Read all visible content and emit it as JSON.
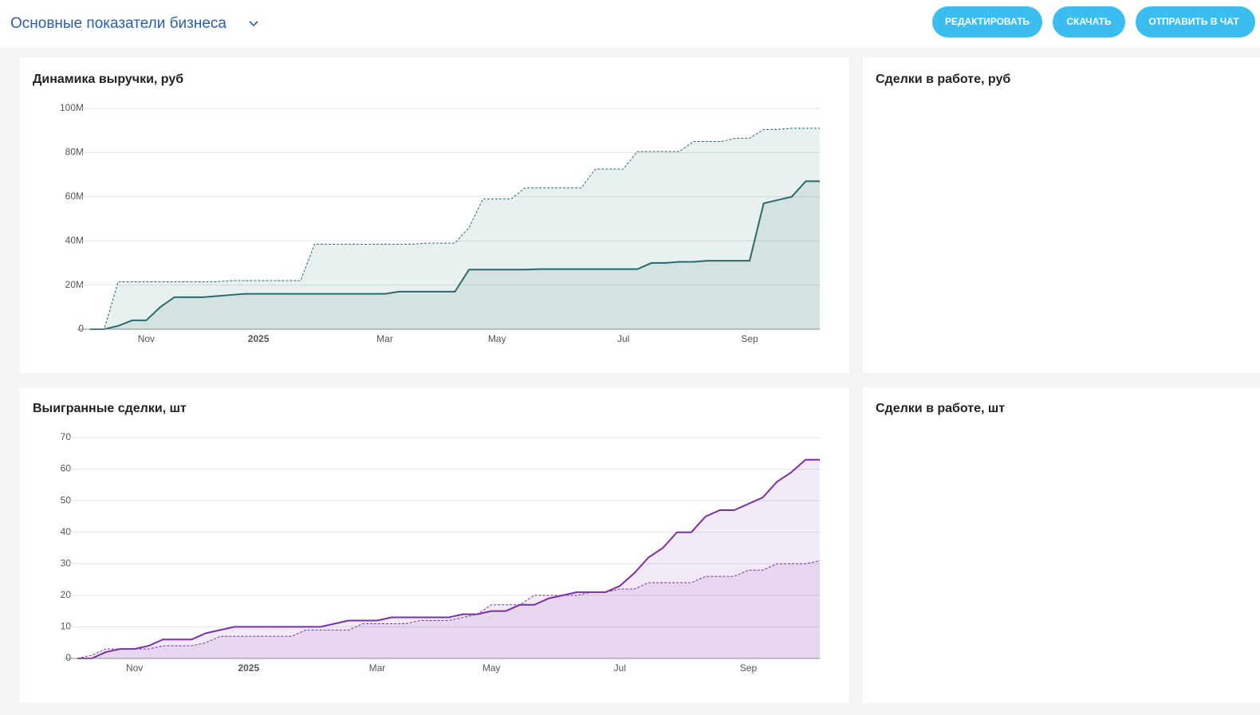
{
  "header": {
    "title": "Основные показатели бизнеса",
    "buttons": [
      "РЕДАКТИРОВАТЬ",
      "СКАЧАТЬ",
      "ОТПРАВИТЬ В ЧАТ"
    ]
  },
  "panels": [
    {
      "title": "Сделки в работе, руб"
    },
    {
      "title": "Сделки в работе, шт"
    }
  ],
  "chart_data": [
    {
      "type": "line",
      "title": "Динамика выручки, руб",
      "categories": [
        null,
        null,
        null,
        null,
        "Nov",
        null,
        null,
        null,
        null,
        null,
        null,
        null,
        "2025",
        null,
        null,
        null,
        null,
        null,
        null,
        null,
        null,
        "Mar",
        null,
        null,
        null,
        null,
        null,
        null,
        null,
        "May",
        null,
        null,
        null,
        null,
        null,
        null,
        null,
        null,
        "Jul",
        null,
        null,
        null,
        null,
        null,
        null,
        null,
        null,
        "Sep",
        null,
        null,
        null,
        null,
        null
      ],
      "series": [
        {
          "color": "#2a6b6b",
          "style": "solid",
          "values": [
            0,
            0,
            1.5,
            4,
            4,
            10,
            14.5,
            14.5,
            14.5,
            15,
            15.5,
            16,
            16,
            16,
            16,
            16,
            16,
            16,
            16,
            16,
            16,
            16,
            17,
            17,
            17,
            17,
            17,
            27,
            27,
            27,
            27,
            27,
            27.2,
            27.2,
            27.2,
            27.2,
            27.2,
            27.2,
            27.2,
            27.2,
            30,
            30,
            30.5,
            30.5,
            31,
            31,
            31,
            31,
            57,
            58.5,
            60,
            67,
            67
          ]
        },
        {
          "color": "#2a6b6b",
          "style": "dashed",
          "values": [
            0,
            0,
            21.5,
            21.5,
            21.5,
            21.5,
            21.5,
            21.5,
            21.5,
            21.5,
            22,
            22,
            22,
            22,
            22,
            22,
            38.5,
            38.5,
            38.5,
            38.5,
            38.5,
            38.5,
            38.5,
            38.5,
            39,
            39,
            39,
            46,
            59,
            59,
            59,
            64,
            64,
            64,
            64,
            64,
            72.5,
            72.5,
            72.5,
            80.5,
            80.5,
            80.5,
            80.5,
            85,
            85,
            85,
            86.5,
            86.5,
            90.5,
            90.5,
            91,
            91,
            91
          ]
        }
      ],
      "ylim": [
        0,
        100
      ],
      "yticks": [
        0,
        {
          "value": 20,
          "label": "20M"
        },
        {
          "value": 40,
          "label": "40M"
        },
        {
          "value": 60,
          "label": "60M"
        },
        {
          "value": 80,
          "label": "80M"
        },
        {
          "value": 100,
          "label": "100M"
        }
      ],
      "grid": true,
      "area": true
    },
    {
      "type": "line",
      "title": "Выигранные сделки, шт",
      "categories": [
        null,
        null,
        null,
        null,
        "Nov",
        null,
        null,
        null,
        null,
        null,
        null,
        null,
        "2025",
        null,
        null,
        null,
        null,
        null,
        null,
        null,
        null,
        "Mar",
        null,
        null,
        null,
        null,
        null,
        null,
        null,
        "May",
        null,
        null,
        null,
        null,
        null,
        null,
        null,
        null,
        "Jul",
        null,
        null,
        null,
        null,
        null,
        null,
        null,
        null,
        "Sep",
        null,
        null,
        null,
        null,
        null
      ],
      "series": [
        {
          "color": "#7b2fa8",
          "style": "solid",
          "values": [
            0,
            0,
            2,
            3,
            3,
            4,
            6,
            6,
            6,
            8,
            9,
            10,
            10,
            10,
            10,
            10,
            10,
            10,
            11,
            12,
            12,
            12,
            13,
            13,
            13,
            13,
            13,
            14,
            14,
            15,
            15,
            17,
            17,
            19,
            20,
            21,
            21,
            21,
            23,
            27,
            32,
            35,
            40,
            40,
            45,
            47,
            47,
            49,
            51,
            56,
            59,
            63,
            63
          ]
        },
        {
          "color": "#7b2fa8",
          "style": "dashed",
          "values": [
            0,
            1,
            3,
            3,
            3,
            3,
            4,
            4,
            4,
            5,
            7,
            7,
            7,
            7,
            7,
            7,
            9,
            9,
            9,
            9,
            11,
            11,
            11,
            11,
            12,
            12,
            12,
            13,
            14,
            17,
            17,
            17,
            20,
            20,
            20,
            20,
            21,
            21,
            22,
            22,
            24,
            24,
            24,
            24,
            26,
            26,
            26,
            28,
            28,
            30,
            30,
            30,
            31
          ]
        }
      ],
      "ylim": [
        0,
        70
      ],
      "yticks": [
        0,
        10,
        20,
        30,
        40,
        50,
        60,
        70
      ],
      "grid": true,
      "area": true
    }
  ]
}
